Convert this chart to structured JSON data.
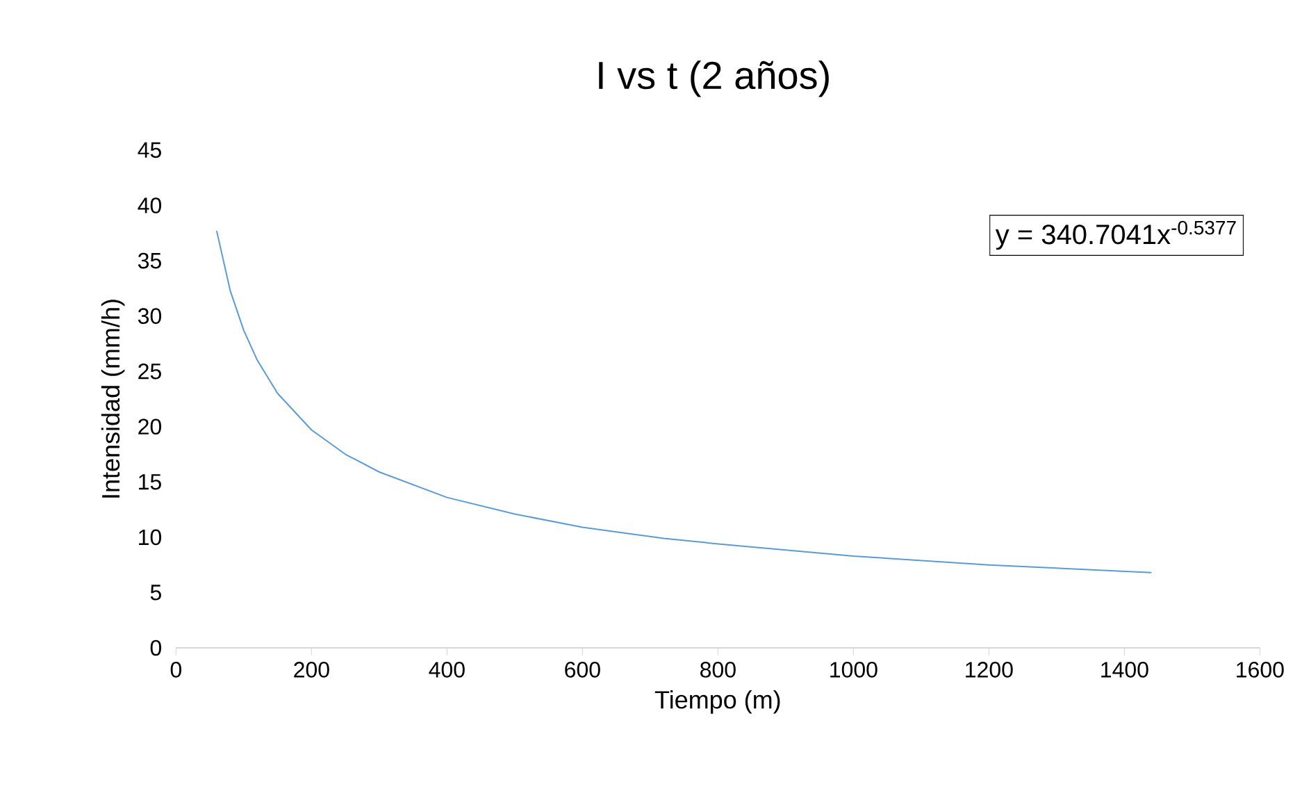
{
  "chart_data": {
    "type": "line",
    "title": "I vs t (2 años)",
    "xlabel": "Tiempo (m)",
    "ylabel": "Intensidad (mm/h)",
    "annotations": [
      "y = 340.7041x$^{-0.5377}$"
    ],
    "xlim": [
      0,
      1600
    ],
    "xticks": [
      0,
      200,
      400,
      600,
      800,
      1000,
      1200,
      1400,
      1600
    ],
    "ylim": [
      0,
      45
    ],
    "yticks": [
      0,
      5,
      10,
      15,
      20,
      25,
      30,
      35,
      40,
      45
    ],
    "grid": false,
    "marker": "none",
    "line_style": "solid",
    "series": [
      {
        "color": "#5b9bd5",
        "x": [
          60,
          80,
          100,
          120,
          150,
          200,
          250,
          300,
          400,
          500,
          600,
          720,
          800,
          1000,
          1200,
          1440
        ],
        "values": [
          37.7,
          32.3,
          28.7,
          26.0,
          23.0,
          19.7,
          17.5,
          15.9,
          13.6,
          12.1,
          10.9,
          9.9,
          9.4,
          8.3,
          7.5,
          6.8
        ]
      }
    ]
  }
}
